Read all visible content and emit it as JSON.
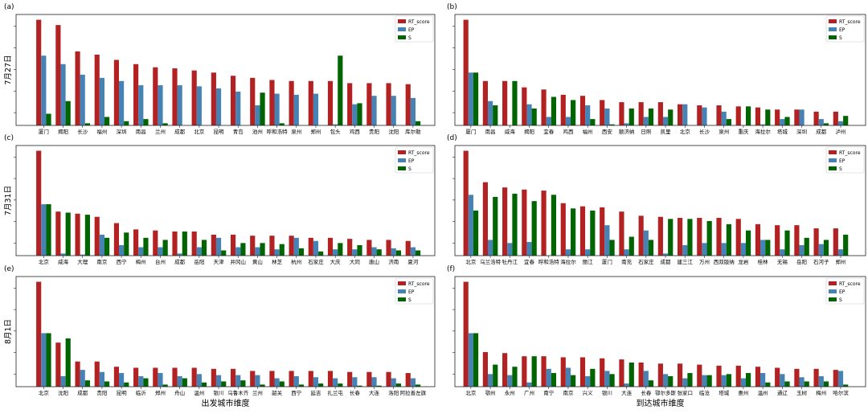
{
  "chart_data": [
    {
      "panel_label": "(a)",
      "type": "bar",
      "ylabel": "7月27日",
      "categories": [
        "厦门",
        "揭阳",
        "长沙",
        "福州",
        "深圳",
        "南昌",
        "兰州",
        "成都",
        "北京",
        "昆明",
        "青岛",
        "池州",
        "呼和浩特",
        "泉州",
        "郑州",
        "包头",
        "鸡西",
        "贵阳",
        "沈阳",
        "库尔勒"
      ],
      "series": [
        {
          "name": "RT_score",
          "color": "#b22222",
          "values": [
            1.0,
            0.95,
            0.7,
            0.67,
            0.62,
            0.58,
            0.55,
            0.54,
            0.52,
            0.5,
            0.47,
            0.45,
            0.43,
            0.42,
            0.42,
            0.42,
            0.4,
            0.4,
            0.4,
            0.39
          ]
        },
        {
          "name": "EP",
          "color": "#4682b4",
          "values": [
            0.66,
            0.58,
            0.48,
            0.45,
            0.42,
            0.38,
            0.38,
            0.38,
            0.37,
            0.35,
            0.32,
            0.19,
            0.3,
            0.29,
            0.3,
            0.01,
            0.2,
            0.28,
            0.28,
            0.26
          ]
        },
        {
          "name": "S",
          "color": "#006400",
          "values": [
            0.11,
            0.23,
            0.02,
            0.08,
            0.04,
            0.06,
            0.02,
            0.0,
            0.0,
            0.0,
            0.0,
            0.31,
            0.02,
            0.0,
            0.0,
            0.66,
            0.21,
            0.0,
            0.0,
            0.04
          ]
        }
      ],
      "ylim": [
        0,
        1.05
      ],
      "grid": false,
      "legend": "upper right"
    },
    {
      "panel_label": "(b)",
      "type": "bar",
      "categories": [
        "厦门",
        "南昌",
        "威海",
        "揭阳",
        "宜春",
        "鸡西",
        "福州",
        "西安",
        "额济纳",
        "日照",
        "凯里",
        "北京",
        "长沙",
        "泉州",
        "重庆",
        "海拉尔",
        "塔城",
        "深圳",
        "成都",
        "泸州"
      ],
      "series": [
        {
          "name": "RT_score",
          "color": "#b22222",
          "values": [
            1.0,
            0.42,
            0.42,
            0.36,
            0.34,
            0.29,
            0.28,
            0.24,
            0.22,
            0.22,
            0.22,
            0.2,
            0.19,
            0.19,
            0.18,
            0.17,
            0.15,
            0.15,
            0.13,
            0.13
          ]
        },
        {
          "name": "EP",
          "color": "#4682b4",
          "values": [
            0.5,
            0.23,
            0.0,
            0.2,
            0.08,
            0.08,
            0.19,
            0.16,
            0.02,
            0.08,
            0.08,
            0.2,
            0.17,
            0.13,
            0.0,
            0.01,
            0.06,
            0.15,
            0.06,
            0.04
          ]
        },
        {
          "name": "S",
          "color": "#006400",
          "values": [
            0.5,
            0.19,
            0.42,
            0.16,
            0.27,
            0.24,
            0.06,
            0.01,
            0.16,
            0.16,
            0.15,
            0.0,
            0.0,
            0.06,
            0.18,
            0.15,
            0.08,
            0.0,
            0.02,
            0.09
          ]
        }
      ],
      "ylim": [
        0,
        1.05
      ],
      "grid": false,
      "legend": "upper right"
    },
    {
      "panel_label": "(c)",
      "type": "bar",
      "ylabel": "7月31日",
      "categories": [
        "北京",
        "威海",
        "大理",
        "南京",
        "西宁",
        "梅州",
        "台州",
        "成都",
        "岳阳",
        "天津",
        "井冈山",
        "黄山",
        "林芝",
        "杭州",
        "石家庄",
        "大庆",
        "大同",
        "唐山",
        "济南",
        "夏河"
      ],
      "series": [
        {
          "name": "RT_score",
          "color": "#b22222",
          "values": [
            1.0,
            0.42,
            0.4,
            0.37,
            0.31,
            0.25,
            0.24,
            0.23,
            0.23,
            0.2,
            0.2,
            0.19,
            0.19,
            0.19,
            0.17,
            0.17,
            0.16,
            0.15,
            0.15,
            0.14
          ]
        },
        {
          "name": "EP",
          "color": "#4682b4",
          "values": [
            0.49,
            0.02,
            0.01,
            0.2,
            0.1,
            0.08,
            0.08,
            0.02,
            0.08,
            0.17,
            0.08,
            0.08,
            0.06,
            0.17,
            0.14,
            0.06,
            0.06,
            0.08,
            0.07,
            0.08
          ]
        },
        {
          "name": "S",
          "color": "#006400",
          "values": [
            0.49,
            0.41,
            0.39,
            0.17,
            0.22,
            0.17,
            0.15,
            0.23,
            0.15,
            0.05,
            0.12,
            0.12,
            0.11,
            0.07,
            0.04,
            0.12,
            0.1,
            0.06,
            0.05,
            0.05
          ]
        }
      ],
      "ylim": [
        0,
        1.05
      ],
      "grid": false,
      "legend": "upper right"
    },
    {
      "panel_label": "(d)",
      "type": "bar",
      "categories": [
        "北京",
        "乌兰浩特",
        "牡丹江",
        "宜春",
        "呼和浩特",
        "海拉尔",
        "丽江",
        "厦门",
        "南充",
        "石家庄",
        "成都",
        "建三江",
        "万州",
        "西双版纳",
        "龙岩",
        "桂林",
        "无锡",
        "岳阳",
        "石河子",
        "郑州"
      ],
      "series": [
        {
          "name": "RT_score",
          "color": "#b22222",
          "values": [
            1.0,
            0.7,
            0.65,
            0.63,
            0.62,
            0.5,
            0.47,
            0.46,
            0.42,
            0.38,
            0.37,
            0.36,
            0.36,
            0.36,
            0.35,
            0.3,
            0.29,
            0.29,
            0.26,
            0.26
          ]
        },
        {
          "name": "EP",
          "color": "#4682b4",
          "values": [
            0.58,
            0.15,
            0.12,
            0.13,
            0.0,
            0.06,
            0.06,
            0.29,
            0.06,
            0.24,
            0.02,
            0.1,
            0.12,
            0.12,
            0.12,
            0.15,
            0.06,
            0.1,
            0.11,
            0.06
          ]
        },
        {
          "name": "S",
          "color": "#006400",
          "values": [
            0.43,
            0.56,
            0.59,
            0.52,
            0.58,
            0.45,
            0.43,
            0.15,
            0.18,
            0.15,
            0.35,
            0.35,
            0.33,
            0.3,
            0.24,
            0.15,
            0.24,
            0.17,
            0.15,
            0.2
          ]
        }
      ],
      "ylim": [
        0,
        1.05
      ],
      "grid": false,
      "legend": "upper right"
    },
    {
      "panel_label": "(e)",
      "type": "bar",
      "ylabel": "8月1日",
      "xlabel": "出发城市维度",
      "categories": [
        "北京",
        "沈阳",
        "成都",
        "贵阳",
        "昆明",
        "临沂",
        "郑州",
        "舟山",
        "温州",
        "银川",
        "乌鲁木齐",
        "兰州",
        "韶关",
        "西宁",
        "延吉",
        "扎兰屯",
        "长春",
        "大连",
        "洛阳",
        "阿拉善左旗"
      ],
      "series": [
        {
          "name": "RT_score",
          "color": "#b22222",
          "values": [
            1.0,
            0.42,
            0.24,
            0.24,
            0.19,
            0.18,
            0.18,
            0.18,
            0.18,
            0.17,
            0.17,
            0.15,
            0.15,
            0.15,
            0.15,
            0.15,
            0.14,
            0.14,
            0.14,
            0.13
          ]
        },
        {
          "name": "EP",
          "color": "#4682b4",
          "values": [
            0.51,
            0.1,
            0.16,
            0.14,
            0.13,
            0.1,
            0.13,
            0.1,
            0.12,
            0.11,
            0.11,
            0.11,
            0.08,
            0.1,
            0.09,
            0.08,
            0.09,
            0.09,
            0.08,
            0.08
          ]
        },
        {
          "name": "S",
          "color": "#006400",
          "values": [
            0.51,
            0.46,
            0.06,
            0.05,
            0.04,
            0.08,
            0.02,
            0.08,
            0.04,
            0.05,
            0.06,
            0.02,
            0.05,
            0.02,
            0.03,
            0.03,
            0.01,
            0.01,
            0.03,
            0.02
          ]
        }
      ],
      "ylim": [
        0,
        1.05
      ],
      "grid": false,
      "legend": "upper right"
    },
    {
      "panel_label": "(f)",
      "type": "bar",
      "xlabel": "到达城市维度",
      "categories": [
        "北京",
        "鄂州",
        "永州",
        "广州",
        "南宁",
        "南京",
        "兴义",
        "银川",
        "大连",
        "长春",
        "鄂尔多斯",
        "张家口",
        "临沧",
        "塔城",
        "惠州",
        "温州",
        "通辽",
        "玉树",
        "梅州",
        "哈尔滨"
      ],
      "series": [
        {
          "name": "RT_score",
          "color": "#b22222",
          "values": [
            1.0,
            0.33,
            0.32,
            0.29,
            0.29,
            0.28,
            0.28,
            0.27,
            0.26,
            0.23,
            0.22,
            0.22,
            0.21,
            0.2,
            0.2,
            0.19,
            0.18,
            0.17,
            0.17,
            0.16
          ]
        },
        {
          "name": "EP",
          "color": "#4682b4",
          "values": [
            0.51,
            0.12,
            0.11,
            0.04,
            0.17,
            0.18,
            0.1,
            0.15,
            0.03,
            0.15,
            0.12,
            0.08,
            0.11,
            0.11,
            0.08,
            0.13,
            0.12,
            0.09,
            0.1,
            0.15
          ]
        },
        {
          "name": "S",
          "color": "#006400",
          "values": [
            0.51,
            0.21,
            0.19,
            0.29,
            0.13,
            0.11,
            0.17,
            0.12,
            0.23,
            0.06,
            0.1,
            0.13,
            0.11,
            0.12,
            0.13,
            0.04,
            0.05,
            0.05,
            0.05,
            0.02
          ]
        }
      ],
      "ylim": [
        0,
        1.05
      ],
      "grid": false,
      "legend": "upper right"
    }
  ]
}
